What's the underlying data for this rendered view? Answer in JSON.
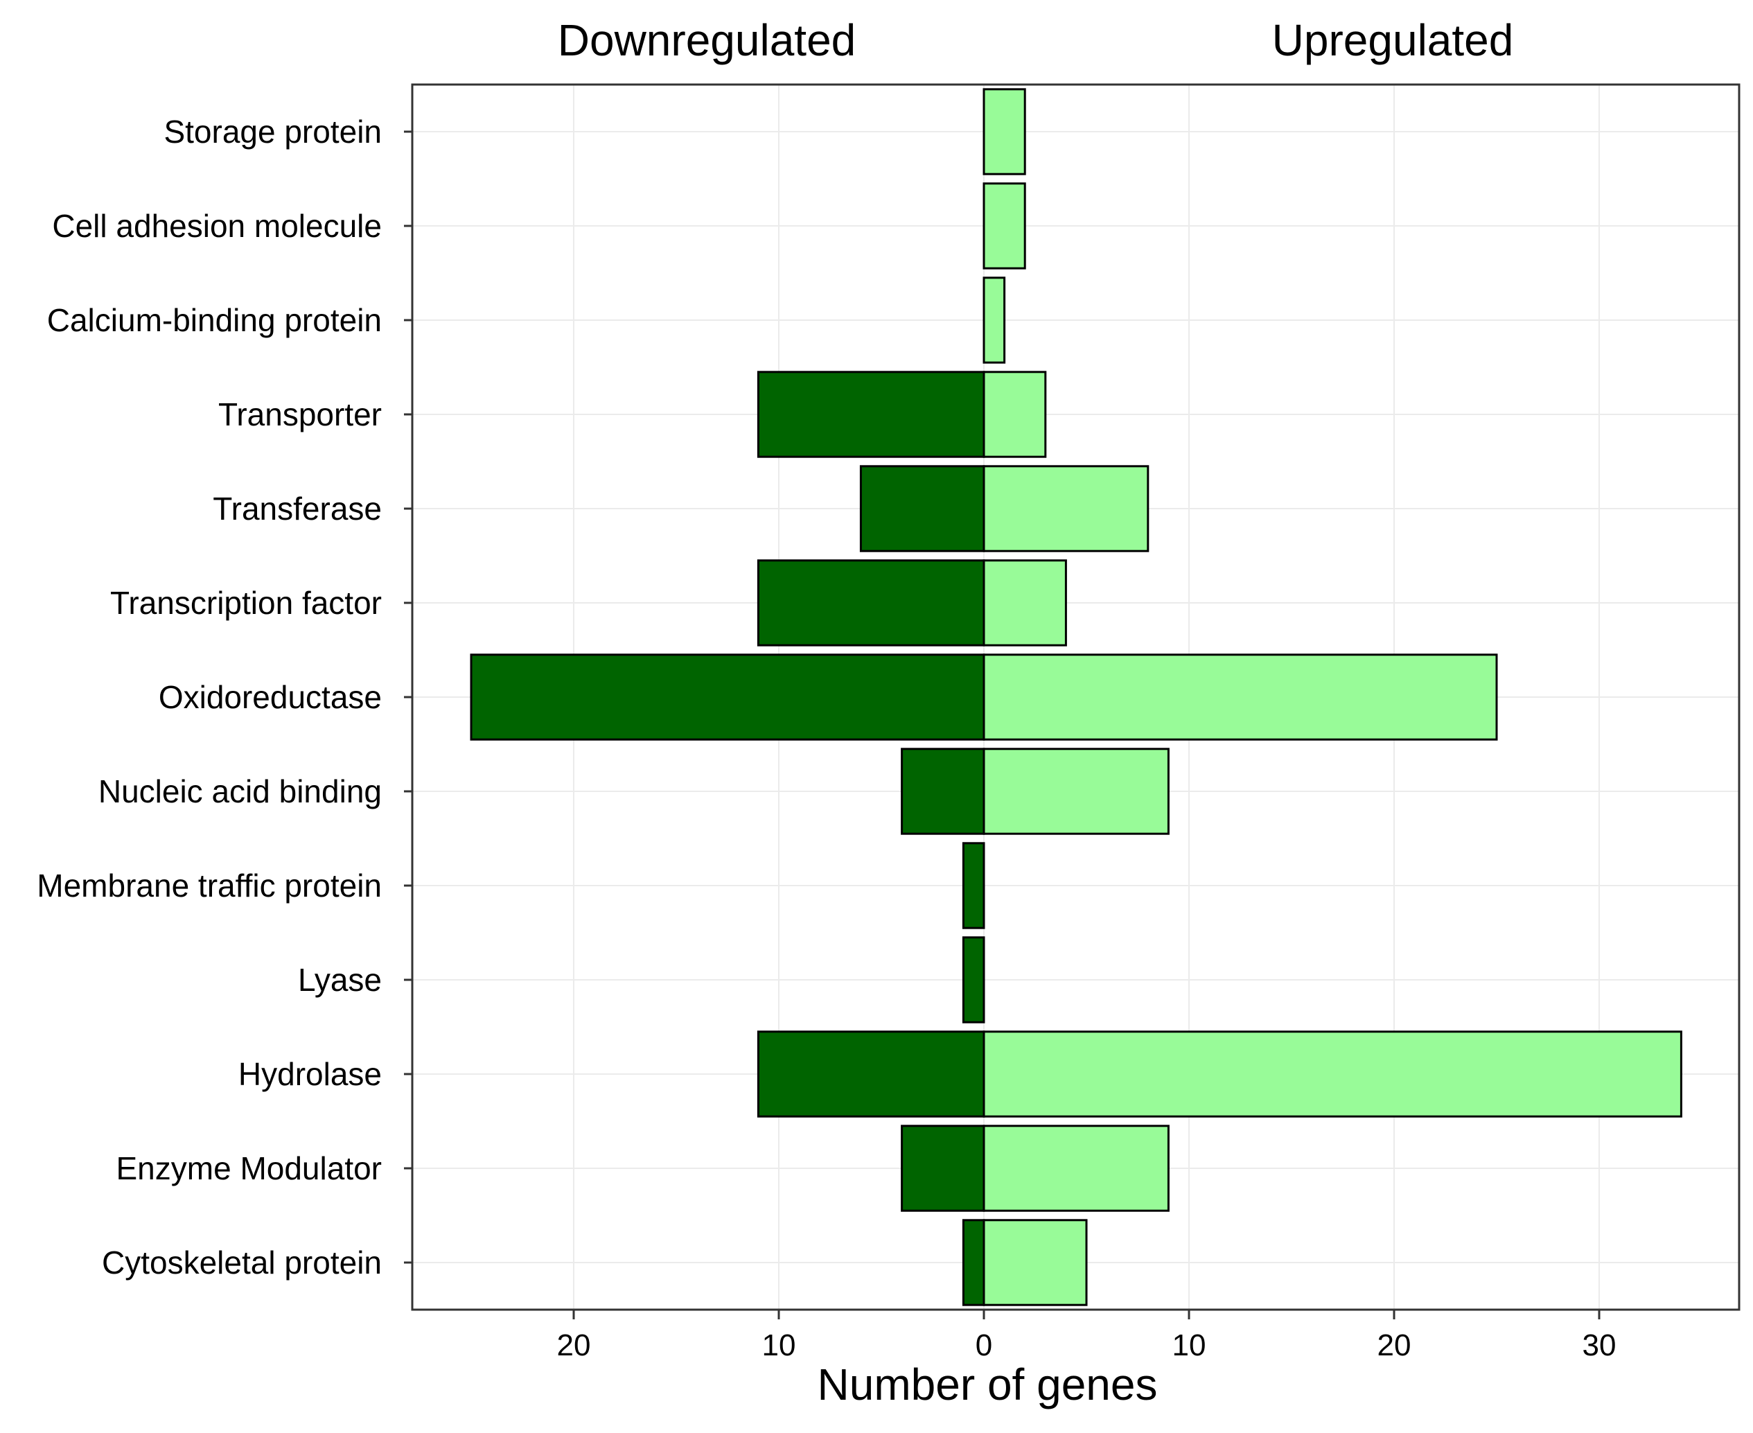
{
  "chart_data": {
    "type": "bar",
    "orientation": "horizontal",
    "layout": "diverging",
    "xlabel": "Number of genes",
    "ylabel": "",
    "left_heading": "Downregulated",
    "right_heading": "Upregulated",
    "xlim": [
      -28,
      37
    ],
    "xticks": [
      -20,
      -10,
      0,
      10,
      20,
      30
    ],
    "xtick_labels": [
      "20",
      "10",
      "0",
      "10",
      "20",
      "30"
    ],
    "grid": true,
    "categories": [
      "Storage protein",
      "Cell adhesion molecule",
      "Calcium-binding protein",
      "Transporter",
      "Transferase",
      "Transcription factor",
      "Oxidoreductase",
      "Nucleic acid binding",
      "Membrane traffic protein",
      "Lyase",
      "Hydrolase",
      "Enzyme Modulator",
      "Cytoskeletal protein"
    ],
    "series": [
      {
        "name": "Downregulated",
        "color": "#006400",
        "values": [
          0,
          0,
          0,
          11,
          6,
          11,
          25,
          4,
          1,
          1,
          11,
          4,
          1
        ]
      },
      {
        "name": "Upregulated",
        "color": "#98fb98",
        "values": [
          2,
          2,
          1,
          3,
          8,
          4,
          25,
          9,
          0,
          0,
          34,
          9,
          5
        ]
      }
    ]
  }
}
